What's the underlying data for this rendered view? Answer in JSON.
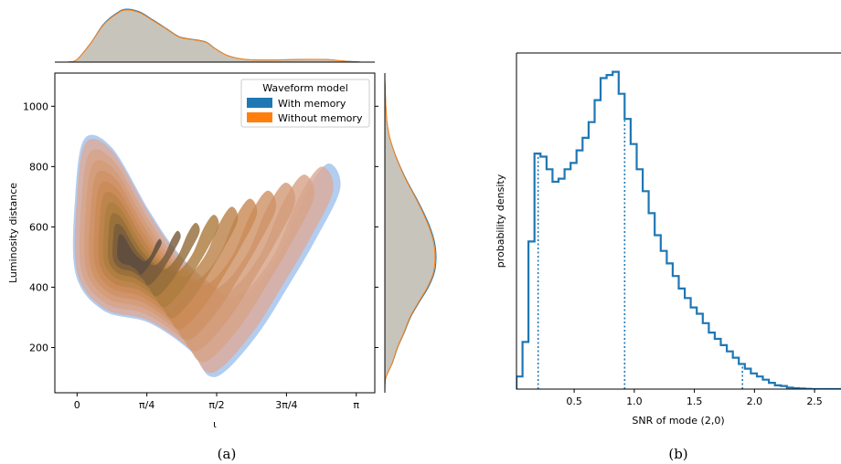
{
  "colors": {
    "with_memory": "#1f77b4",
    "without_memory": "#ff7f0e",
    "with_memory_fill": "#aac8ee",
    "without_memory_fill": "#d9a38f",
    "marginal_fill": "#c7c4bc",
    "hist_line": "#1f77b4"
  },
  "captions": {
    "a": "(a)",
    "b": "(b)"
  },
  "chart_data": [
    {
      "type": "contour",
      "panel": "a",
      "xlabel": "ι",
      "ylabel": "Luminosity distance",
      "xlim": [
        -0.25,
        3.35
      ],
      "ylim": [
        50,
        1110
      ],
      "xticks": [
        {
          "value": 0,
          "label": "0"
        },
        {
          "value": 0.7854,
          "label": "π/4"
        },
        {
          "value": 1.5708,
          "label": "π/2"
        },
        {
          "value": 2.3562,
          "label": "3π/4"
        },
        {
          "value": 3.1416,
          "label": "π"
        }
      ],
      "yticks": [
        {
          "value": 200,
          "label": "200"
        },
        {
          "value": 400,
          "label": "400"
        },
        {
          "value": 600,
          "label": "600"
        },
        {
          "value": 800,
          "label": "800"
        },
        {
          "value": 1000,
          "label": "1000"
        }
      ],
      "legend": {
        "title": "Waveform model",
        "placement": "upper right",
        "entries": [
          "With memory",
          "Without memory"
        ]
      },
      "series": [
        {
          "name": "With memory"
        },
        {
          "name": "Without memory"
        }
      ],
      "contour_levels": 10,
      "mode": {
        "x": 0.55,
        "y": 510
      },
      "outer_region": [
        [
          0.0,
          700
        ],
        [
          0.1,
          880
        ],
        [
          0.4,
          850
        ],
        [
          0.8,
          650
        ],
        [
          1.1,
          520
        ],
        [
          1.45,
          420
        ],
        [
          1.8,
          370
        ],
        [
          2.2,
          500
        ],
        [
          2.5,
          700
        ],
        [
          2.75,
          800
        ],
        [
          2.88,
          720
        ],
        [
          2.6,
          550
        ],
        [
          2.3,
          400
        ],
        [
          2.0,
          260
        ],
        [
          1.65,
          140
        ],
        [
          1.45,
          120
        ],
        [
          1.25,
          200
        ],
        [
          0.8,
          290
        ],
        [
          0.3,
          330
        ],
        [
          0.0,
          450
        ]
      ],
      "x_marginal": [
        [
          -0.1,
          0.0
        ],
        [
          0.0,
          0.05
        ],
        [
          0.15,
          0.35
        ],
        [
          0.3,
          0.72
        ],
        [
          0.45,
          0.93
        ],
        [
          0.55,
          1.0
        ],
        [
          0.7,
          0.95
        ],
        [
          0.85,
          0.8
        ],
        [
          1.0,
          0.64
        ],
        [
          1.15,
          0.48
        ],
        [
          1.3,
          0.43
        ],
        [
          1.45,
          0.38
        ],
        [
          1.55,
          0.26
        ],
        [
          1.7,
          0.12
        ],
        [
          1.9,
          0.05
        ],
        [
          2.2,
          0.04
        ],
        [
          2.5,
          0.05
        ],
        [
          2.8,
          0.05
        ],
        [
          3.0,
          0.02
        ],
        [
          3.2,
          0.0
        ]
      ],
      "y_marginal": [
        [
          60,
          0.0
        ],
        [
          100,
          0.02
        ],
        [
          150,
          0.15
        ],
        [
          200,
          0.25
        ],
        [
          250,
          0.38
        ],
        [
          300,
          0.5
        ],
        [
          350,
          0.67
        ],
        [
          400,
          0.85
        ],
        [
          450,
          0.97
        ],
        [
          500,
          1.0
        ],
        [
          550,
          0.97
        ],
        [
          600,
          0.88
        ],
        [
          650,
          0.75
        ],
        [
          700,
          0.6
        ],
        [
          750,
          0.44
        ],
        [
          800,
          0.3
        ],
        [
          850,
          0.18
        ],
        [
          900,
          0.09
        ],
        [
          950,
          0.04
        ],
        [
          1000,
          0.02
        ],
        [
          1090,
          0.0
        ]
      ]
    },
    {
      "type": "histogram",
      "panel": "b",
      "xlabel": "SNR of mode (2,0)",
      "ylabel": "probability density",
      "xlim": [
        0.02,
        2.72
      ],
      "ylim": [
        0,
        1.07
      ],
      "xticks": [
        0.5,
        1.0,
        1.5,
        2.0,
        2.5
      ],
      "bin_width": 0.05,
      "bin_start": 0.02,
      "series": [
        {
          "name": "",
          "values": [
            0.04,
            0.15,
            0.47,
            0.75,
            0.74,
            0.7,
            0.66,
            0.67,
            0.7,
            0.72,
            0.76,
            0.8,
            0.85,
            0.92,
            0.99,
            1.0,
            1.01,
            0.94,
            0.86,
            0.78,
            0.7,
            0.63,
            0.56,
            0.49,
            0.44,
            0.4,
            0.36,
            0.32,
            0.29,
            0.26,
            0.24,
            0.21,
            0.18,
            0.16,
            0.14,
            0.12,
            0.1,
            0.08,
            0.065,
            0.05,
            0.04,
            0.03,
            0.02,
            0.012,
            0.01,
            0.005,
            0.003,
            0.002,
            0.001,
            0.0,
            0.0,
            0.0,
            0.0,
            0.0
          ]
        }
      ],
      "quantile_lines": [
        0.2,
        0.92,
        1.9
      ]
    }
  ]
}
